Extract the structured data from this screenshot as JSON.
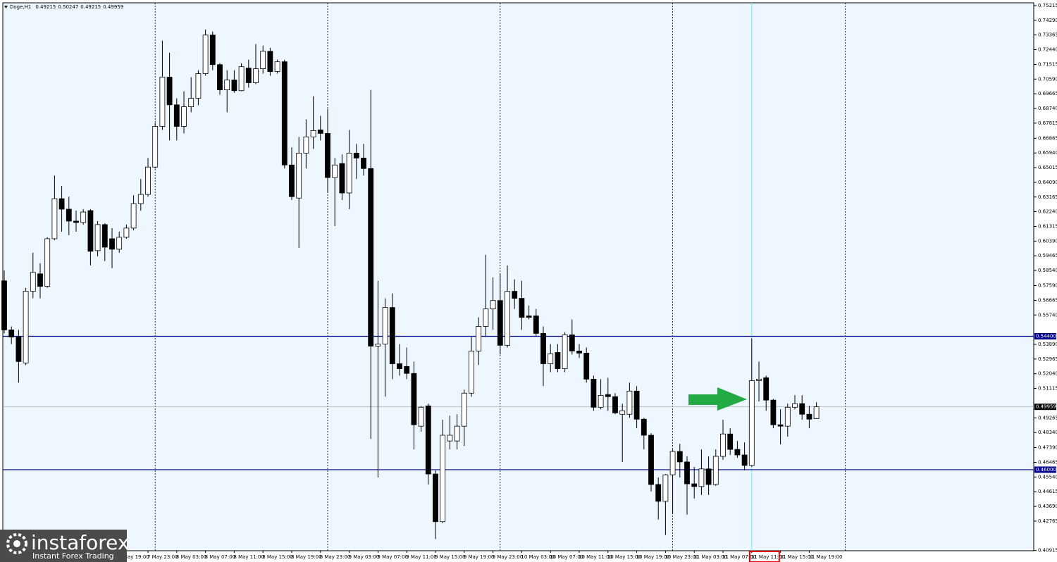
{
  "chart_data": {
    "type": "candlestick",
    "title": "Doge,H1",
    "categories": [
      null,
      null,
      null,
      null,
      null,
      null,
      null,
      null,
      null,
      null,
      null,
      null,
      null,
      null,
      null,
      null,
      "7 May 19:00",
      null,
      null,
      null,
      "7 May 23:00",
      null,
      null,
      null,
      "8 May 03:00",
      null,
      null,
      null,
      "8 May 07:00",
      null,
      null,
      null,
      "8 May 11:00",
      null,
      null,
      null,
      "8 May 15:00",
      null,
      null,
      null,
      "8 May 19:00",
      null,
      null,
      null,
      "8 May 23:00",
      null,
      null,
      null,
      "9 May 03:00",
      null,
      null,
      null,
      "9 May 07:00",
      null,
      null,
      null,
      "9 May 11:00",
      null,
      null,
      null,
      "9 May 15:00",
      null,
      null,
      null,
      "9 May 19:00",
      null,
      null,
      null,
      "9 May 23:00",
      null,
      null,
      null,
      "10 May 03:00",
      null,
      null,
      null,
      "10 May 07:00",
      null,
      null,
      null,
      "10 May 11:00",
      null,
      null,
      null,
      "10 May 15:00",
      null,
      null,
      null,
      "10 May 19:00",
      null,
      null,
      null,
      "10 May 23:00",
      null,
      null,
      null,
      "11 May 03:00",
      null,
      null,
      null,
      "11 May 07:00",
      null,
      null,
      null,
      "11 May 11:00",
      null,
      null,
      null,
      "11 May 15:00",
      null,
      null,
      null,
      "11 May 19:00",
      null
    ],
    "open": [
      0.5789,
      0.548,
      0.5435,
      0.5272,
      0.5723,
      0.5833,
      0.5754,
      0.6054,
      0.6306,
      0.624,
      0.6165,
      0.6156,
      0.6231,
      0.5979,
      0.6143,
      0.6054,
      0.5988,
      0.6063,
      0.6121,
      0.6275,
      0.6333,
      0.6505,
      0.6761,
      0.7071,
      0.6897,
      0.6761,
      0.6885,
      0.6938,
      0.7093,
      0.7336,
      0.715,
      0.6991,
      0.7053,
      0.6986,
      0.7128,
      0.7036,
      0.7124,
      0.7234,
      0.7106,
      0.7168,
      0.6518,
      0.631,
      0.6593,
      0.6695,
      0.6739,
      0.6717,
      0.6439,
      0.6527,
      0.6342,
      0.6593,
      0.6562,
      0.6496,
      0.5378,
      0.5391,
      0.5621,
      0.5267,
      0.525,
      0.5206,
      0.4874,
      0.5002,
      0.4573,
      0.4273,
      0.4781,
      0.4781,
      0.4874,
      0.5082,
      0.5347,
      0.5502,
      0.5612,
      0.5665,
      0.5383,
      0.5723,
      0.5679,
      0.5568,
      0.5568,
      0.5458,
      0.5267,
      0.5338,
      0.5236,
      0.5449,
      0.5347,
      0.5334,
      0.517,
      0.4993,
      0.5073,
      0.506,
      0.4949,
      0.4949,
      0.5095,
      0.4918,
      0.4817,
      0.4507,
      0.4401,
      0.4568,
      0.4715,
      0.4649,
      0.4511,
      0.4494,
      0.4605,
      0.4507,
      0.4684,
      0.4825,
      0.4728,
      0.4693,
      0.4627,
      0.5161,
      0.5179,
      0.5038,
      0.4883,
      0.4874,
      0.4993,
      0.5016,
      0.4949,
      0.49215
    ],
    "high": [
      0.5855,
      0.5502,
      0.548,
      0.5745,
      0.5966,
      0.59,
      0.6063,
      0.6452,
      0.6386,
      0.6319,
      0.6231,
      0.624,
      0.624,
      0.6165,
      0.6151,
      0.6121,
      0.6098,
      0.6143,
      0.6328,
      0.643,
      0.6562,
      0.6783,
      0.7301,
      0.7225,
      0.6938,
      0.6982,
      0.7071,
      0.7115,
      0.7371,
      0.7358,
      0.7159,
      0.7115,
      0.7115,
      0.7159,
      0.7181,
      0.7279,
      0.727,
      0.7256,
      0.7181,
      0.7181,
      0.6629,
      0.6695,
      0.6806,
      0.6951,
      0.6828,
      0.6872,
      0.6562,
      0.6585,
      0.6739,
      0.6651,
      0.6651,
      0.6991,
      0.5789,
      0.5679,
      0.571,
      0.5391,
      0.5369,
      0.5281,
      0.5002,
      0.5016,
      0.4596,
      0.4914,
      0.494,
      0.4949,
      0.5104,
      0.5435,
      0.5559,
      0.5953,
      0.5811,
      0.5833,
      0.5886,
      0.5798,
      0.5789,
      0.5634,
      0.5612,
      0.5502,
      0.5391,
      0.5391,
      0.5466,
      0.5546,
      0.5391,
      0.5369,
      0.5192,
      0.517,
      0.5179,
      0.5082,
      0.5016,
      0.5148,
      0.5126,
      0.4927,
      0.483,
      0.4551,
      0.4573,
      0.4728,
      0.4763,
      0.4684,
      0.4618,
      0.4728,
      0.4684,
      0.4728,
      0.4914,
      0.4861,
      0.4781,
      0.4772,
      0.5426,
      0.5281,
      0.5192,
      0.5046,
      0.498,
      0.5016,
      0.5069,
      0.5069,
      0.5002,
      0.50247
    ],
    "low": [
      0.5458,
      0.5391,
      0.5148,
      0.5259,
      0.5679,
      0.5679,
      0.5745,
      0.6045,
      0.6098,
      0.6076,
      0.6098,
      0.6143,
      0.5886,
      0.5944,
      0.5913,
      0.5869,
      0.5966,
      0.6054,
      0.6107,
      0.6231,
      0.6319,
      0.6496,
      0.6739,
      0.6673,
      0.6673,
      0.6717,
      0.685,
      0.6894,
      0.708,
      0.7115,
      0.696,
      0.685,
      0.6973,
      0.6982,
      0.7005,
      0.7027,
      0.7093,
      0.708,
      0.7093,
      0.6496,
      0.6297,
      0.5997,
      0.6496,
      0.662,
      0.6673,
      0.6342,
      0.6134,
      0.6297,
      0.624,
      0.643,
      0.6452,
      0.4794,
      0.4551,
      0.506,
      0.517,
      0.5192,
      0.517,
      0.4728,
      0.4839,
      0.4507,
      0.4163,
      0.4264,
      0.4728,
      0.4728,
      0.475,
      0.506,
      0.5259,
      0.5435,
      0.548,
      0.5325,
      0.5369,
      0.5612,
      0.548,
      0.5546,
      0.5444,
      0.5126,
      0.5214,
      0.5214,
      0.5214,
      0.5325,
      0.5303,
      0.5148,
      0.4971,
      0.498,
      0.4971,
      0.4949,
      0.4649,
      0.4927,
      0.4861,
      0.4728,
      0.4463,
      0.4286,
      0.4189,
      0.4322,
      0.4551,
      0.4317,
      0.4419,
      0.4441,
      0.4441,
      0.4498,
      0.4662,
      0.4693,
      0.4675,
      0.4596,
      0.4618,
      0.5029,
      0.4971,
      0.4861,
      0.4759,
      0.4808,
      0.498,
      0.4914,
      0.4861,
      0.49215
    ],
    "close": [
      0.548,
      0.5435,
      0.5281,
      0.5723,
      0.5842,
      0.5754,
      0.6054,
      0.6306,
      0.624,
      0.6165,
      0.6156,
      0.6222,
      0.5975,
      0.6143,
      0.6001,
      0.5988,
      0.6063,
      0.6121,
      0.6275,
      0.6333,
      0.6505,
      0.6761,
      0.7071,
      0.6897,
      0.6761,
      0.6885,
      0.6938,
      0.7093,
      0.7336,
      0.715,
      0.6991,
      0.7053,
      0.6986,
      0.7137,
      0.7036,
      0.7124,
      0.7234,
      0.7106,
      0.7168,
      0.6518,
      0.6319,
      0.6593,
      0.6695,
      0.6735,
      0.6717,
      0.6439,
      0.6518,
      0.6342,
      0.6593,
      0.6562,
      0.6496,
      0.5378,
      0.5391,
      0.5621,
      0.5267,
      0.5236,
      0.5206,
      0.4883,
      0.4993,
      0.4573,
      0.4273,
      0.4817,
      0.4817,
      0.4874,
      0.5082,
      0.5347,
      0.5502,
      0.5612,
      0.5665,
      0.5383,
      0.5723,
      0.5679,
      0.5559,
      0.5559,
      0.5458,
      0.5267,
      0.533,
      0.5236,
      0.5449,
      0.5347,
      0.5334,
      0.517,
      0.4993,
      0.5068,
      0.506,
      0.4958,
      0.4971,
      0.5095,
      0.4918,
      0.4817,
      0.4507,
      0.4401,
      0.4568,
      0.4715,
      0.4649,
      0.4511,
      0.4494,
      0.4605,
      0.4507,
      0.4684,
      0.4825,
      0.4728,
      0.4693,
      0.4627,
      0.5161,
      0.517,
      0.5038,
      0.4883,
      0.4874,
      0.4993,
      0.5016,
      0.4949,
      0.4918,
      0.49959
    ],
    "up_color": "#ffffff",
    "down_color": "#000000",
    "ylim": [
      0.409,
      0.7539
    ],
    "yticks": [
      0.75215,
      {
        "value": 0.7429,
        "label": "0.74290"
      },
      0.73365,
      {
        "value": 0.7244,
        "label": "0.72440"
      },
      0.71515,
      {
        "value": 0.7059,
        "label": "0.70590"
      },
      0.69665,
      {
        "value": 0.6874,
        "label": "0.68740"
      },
      0.67815,
      0.66865,
      {
        "value": 0.6594,
        "label": "0.65940"
      },
      0.65015,
      {
        "value": 0.6409,
        "label": "0.64090"
      },
      0.63165,
      {
        "value": 0.6224,
        "label": "0.62240"
      },
      0.61315,
      {
        "value": 0.6039,
        "label": "0.60390"
      },
      0.59465,
      {
        "value": 0.5854,
        "label": "0.58540"
      },
      {
        "value": 0.5759,
        "label": "0.57590"
      },
      0.56665,
      {
        "value": 0.5574,
        "label": "0.55740"
      },
      {
        "value": 0.5389,
        "label": "0.53890"
      },
      0.52965,
      {
        "value": 0.5204,
        "label": "0.52040"
      },
      0.51115,
      0.49265,
      {
        "value": 0.4834,
        "label": "0.48340"
      },
      {
        "value": 0.4739,
        "label": "0.47390"
      },
      0.46465,
      {
        "value": 0.4554,
        "label": "0.45540"
      },
      0.44615,
      {
        "value": 0.4369,
        "label": "0.43690"
      },
      0.42765,
      0.40915
    ],
    "grid": false,
    "hlines": [
      {
        "value": 0.544,
        "label": "0.54400",
        "color": "#00008b"
      },
      {
        "value": 0.46,
        "label": "0.46000",
        "color": "#00008b"
      }
    ],
    "watermark": {
      "brand": "instaforex",
      "tagline": "Instant Forex Trading"
    }
  }
}
